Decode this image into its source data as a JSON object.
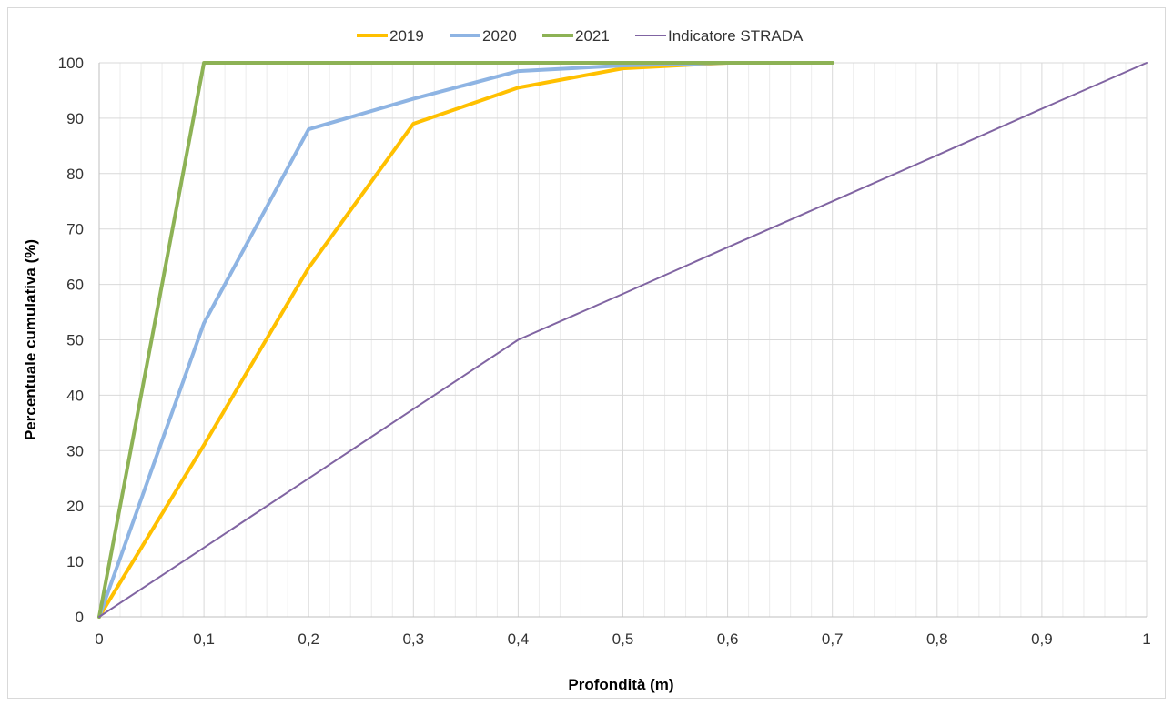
{
  "chart_data": {
    "type": "line",
    "title": "",
    "xlabel": "Profondità  (m)",
    "ylabel": "Percentuale cumulativa (%)",
    "xlim": [
      0,
      1
    ],
    "ylim": [
      0,
      100
    ],
    "x_ticks": [
      "0",
      "0,1",
      "0,2",
      "0,3",
      "0,4",
      "0,5",
      "0,6",
      "0,7",
      "0,8",
      "0,9",
      "1"
    ],
    "y_ticks": [
      "0",
      "10",
      "20",
      "30",
      "40",
      "50",
      "60",
      "70",
      "80",
      "90",
      "100"
    ],
    "grid": true,
    "minor_grid": true,
    "legend_position": "top",
    "series": [
      {
        "name": "2019",
        "color": "#FFC000",
        "width": "thick",
        "x": [
          0,
          0.1,
          0.2,
          0.3,
          0.4,
          0.5,
          0.6,
          0.7
        ],
        "y": [
          0,
          31,
          63,
          89,
          95.5,
          99,
          100,
          100
        ]
      },
      {
        "name": "2020",
        "color": "#8EB4E3",
        "width": "thick",
        "x": [
          0,
          0.1,
          0.2,
          0.3,
          0.4,
          0.5,
          0.6,
          0.7
        ],
        "y": [
          0,
          53,
          88,
          93.5,
          98.5,
          99.5,
          100,
          100
        ]
      },
      {
        "name": "2021",
        "color": "#8DB255",
        "width": "thick",
        "x": [
          0,
          0.1,
          0.2,
          0.3,
          0.4,
          0.5,
          0.6,
          0.7
        ],
        "y": [
          0,
          100,
          100,
          100,
          100,
          100,
          100,
          100
        ]
      },
      {
        "name": "Indicatore STRADA",
        "color": "#8064A2",
        "width": "thin",
        "x": [
          0,
          0.1,
          0.2,
          0.3,
          0.4,
          0.5,
          0.6,
          0.7,
          0.8,
          0.9,
          1
        ],
        "y": [
          0,
          12.5,
          25,
          37.5,
          50,
          58.3,
          66.7,
          75,
          83.3,
          91.7,
          100
        ]
      }
    ]
  }
}
